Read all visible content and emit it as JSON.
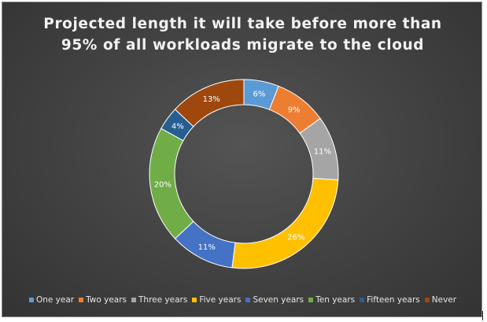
{
  "chart_data": {
    "type": "pie",
    "subtype": "donut",
    "title": "Projected length it will take before more than 95% of all workloads migrate to the cloud",
    "title_lines": [
      "Projected length it will take before more than",
      "95% of all workloads migrate to the cloud"
    ],
    "categories": [
      "One year",
      "Two years",
      "Three years",
      "Five years",
      "Seven years",
      "Ten years",
      "Fifteen years",
      "Never"
    ],
    "values": [
      6,
      9,
      11,
      26,
      11,
      20,
      4,
      13
    ],
    "data_labels": [
      "6%",
      "9%",
      "11%",
      "26%",
      "11%",
      "20%",
      "4%",
      "13%"
    ],
    "colors": [
      "#5B9BD5",
      "#ED7D31",
      "#A5A5A5",
      "#FFC000",
      "#4472C4",
      "#70AD47",
      "#255E91",
      "#9E480E"
    ],
    "legend_position": "bottom",
    "background": "#444444"
  }
}
